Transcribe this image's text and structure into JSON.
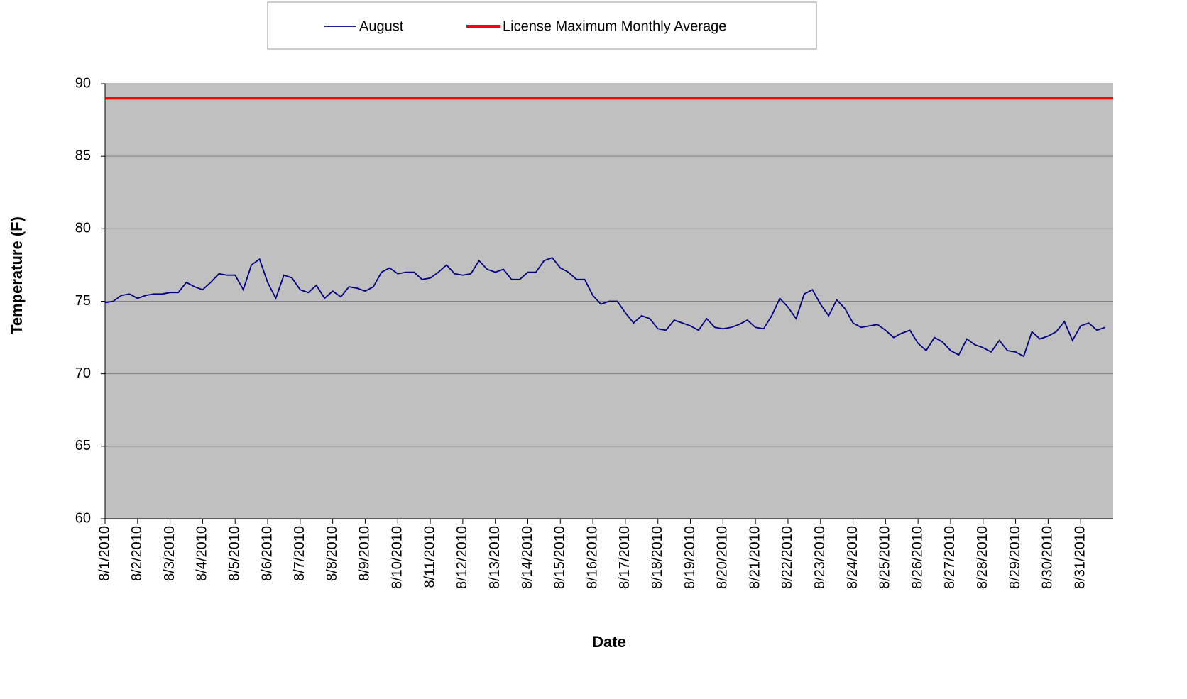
{
  "chart_data": {
    "type": "line",
    "xlabel": "Date",
    "ylabel": "Temperature (F)",
    "xlim": [
      1,
      32
    ],
    "ylim": [
      60,
      90
    ],
    "yticks": [
      60,
      65,
      70,
      75,
      80,
      85,
      90
    ],
    "xticks": [
      {
        "value": 1,
        "label": "8/1/2010"
      },
      {
        "value": 2,
        "label": "8/2/2010"
      },
      {
        "value": 3,
        "label": "8/3/2010"
      },
      {
        "value": 4,
        "label": "8/4/2010"
      },
      {
        "value": 5,
        "label": "8/5/2010"
      },
      {
        "value": 6,
        "label": "8/6/2010"
      },
      {
        "value": 7,
        "label": "8/7/2010"
      },
      {
        "value": 8,
        "label": "8/8/2010"
      },
      {
        "value": 9,
        "label": "8/9/2010"
      },
      {
        "value": 10,
        "label": "8/10/2010"
      },
      {
        "value": 11,
        "label": "8/11/2010"
      },
      {
        "value": 12,
        "label": "8/12/2010"
      },
      {
        "value": 13,
        "label": "8/13/2010"
      },
      {
        "value": 14,
        "label": "8/14/2010"
      },
      {
        "value": 15,
        "label": "8/15/2010"
      },
      {
        "value": 16,
        "label": "8/16/2010"
      },
      {
        "value": 17,
        "label": "8/17/2010"
      },
      {
        "value": 18,
        "label": "8/18/2010"
      },
      {
        "value": 19,
        "label": "8/19/2010"
      },
      {
        "value": 20,
        "label": "8/20/2010"
      },
      {
        "value": 21,
        "label": "8/21/2010"
      },
      {
        "value": 22,
        "label": "8/22/2010"
      },
      {
        "value": 23,
        "label": "8/23/2010"
      },
      {
        "value": 24,
        "label": "8/24/2010"
      },
      {
        "value": 25,
        "label": "8/25/2010"
      },
      {
        "value": 26,
        "label": "8/26/2010"
      },
      {
        "value": 27,
        "label": "8/27/2010"
      },
      {
        "value": 28,
        "label": "8/28/2010"
      },
      {
        "value": 29,
        "label": "8/29/2010"
      },
      {
        "value": 30,
        "label": "8/30/2010"
      },
      {
        "value": 31,
        "label": "8/31/2010"
      }
    ],
    "grid": true,
    "legend": "top",
    "series": [
      {
        "name": "August",
        "color": "#000080",
        "x": [
          1,
          1.25,
          1.5,
          1.75,
          2,
          2.25,
          2.5,
          2.75,
          3,
          3.25,
          3.5,
          3.75,
          4,
          4.25,
          4.5,
          4.75,
          5,
          5.25,
          5.5,
          5.75,
          6,
          6.25,
          6.5,
          6.75,
          7,
          7.25,
          7.5,
          7.75,
          8,
          8.25,
          8.5,
          8.75,
          9,
          9.25,
          9.5,
          9.75,
          10,
          10.25,
          10.5,
          10.75,
          11,
          11.25,
          11.5,
          11.75,
          12,
          12.25,
          12.5,
          12.75,
          13,
          13.25,
          13.5,
          13.75,
          14,
          14.25,
          14.5,
          14.75,
          15,
          15.25,
          15.5,
          15.75,
          16,
          16.25,
          16.5,
          16.75,
          17,
          17.25,
          17.5,
          17.75,
          18,
          18.25,
          18.5,
          18.75,
          19,
          19.25,
          19.5,
          19.75,
          20,
          20.25,
          20.5,
          20.75,
          21,
          21.25,
          21.5,
          21.75,
          22,
          22.25,
          22.5,
          22.75,
          23,
          23.25,
          23.5,
          23.75,
          24,
          24.25,
          24.5,
          24.75,
          25,
          25.25,
          25.5,
          25.75,
          26,
          26.25,
          26.5,
          26.75,
          27,
          27.25,
          27.5,
          27.75,
          28,
          28.25,
          28.5,
          28.75,
          29,
          29.25,
          29.5,
          29.75,
          30,
          30.25,
          30.5,
          30.75,
          31,
          31.25,
          31.5,
          31.75
        ],
        "values": [
          74.9,
          75.0,
          75.4,
          75.5,
          75.2,
          75.4,
          75.5,
          75.5,
          75.6,
          75.6,
          76.3,
          76.0,
          75.8,
          76.3,
          76.9,
          76.8,
          76.8,
          75.8,
          77.5,
          77.9,
          76.3,
          75.2,
          76.8,
          76.6,
          75.8,
          75.6,
          76.1,
          75.2,
          75.7,
          75.3,
          76.0,
          75.9,
          75.7,
          76.0,
          77.0,
          77.3,
          76.9,
          77.0,
          77.0,
          76.5,
          76.6,
          77.0,
          77.5,
          76.9,
          76.8,
          76.9,
          77.8,
          77.2,
          77.0,
          77.2,
          76.5,
          76.5,
          77.0,
          77.0,
          77.8,
          78.0,
          77.3,
          77.0,
          76.5,
          76.5,
          75.4,
          74.8,
          75.0,
          75.0,
          74.2,
          73.5,
          74.0,
          73.8,
          73.1,
          73.0,
          73.7,
          73.5,
          73.3,
          73.0,
          73.8,
          73.2,
          73.1,
          73.2,
          73.4,
          73.7,
          73.2,
          73.1,
          74.0,
          75.2,
          74.6,
          73.8,
          75.5,
          75.8,
          74.8,
          74.0,
          75.1,
          74.5,
          73.5,
          73.2,
          73.3,
          73.4,
          73.0,
          72.5,
          72.8,
          73.0,
          72.1,
          71.6,
          72.5,
          72.2,
          71.6,
          71.3,
          72.4,
          72.0,
          71.8,
          71.5,
          72.3,
          71.6,
          71.5,
          71.2,
          72.9,
          72.4,
          72.6,
          72.9,
          73.6,
          72.3,
          73.3,
          73.5,
          73.0,
          73.2
        ]
      },
      {
        "name": "License Maximum Monthly Average",
        "color": "#ff0000",
        "x": [
          1,
          32
        ],
        "values": [
          89,
          89
        ]
      }
    ]
  }
}
